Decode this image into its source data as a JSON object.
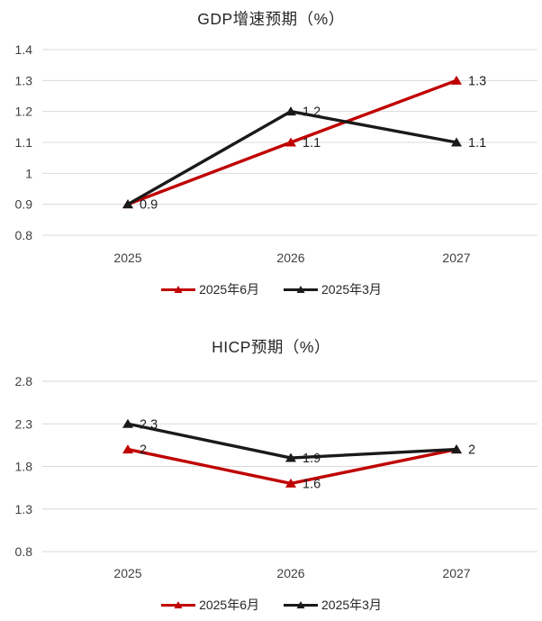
{
  "page": {
    "background": "#FFFFFF"
  },
  "colors": {
    "red_series": "#C00000",
    "black_series": "#1A1A1A",
    "gridline": "#D9D9D9",
    "axis_label": "#404040",
    "data_label": "#1F1F1F",
    "title": "#262626"
  },
  "chart_data": [
    {
      "type": "line",
      "title": "GDP增速预期（%）",
      "categories": [
        "2025",
        "2026",
        "2027"
      ],
      "series": [
        {
          "name": "2025年6月",
          "color": "#C00000",
          "values": [
            0.9,
            1.1,
            1.3
          ],
          "point_labels": [
            "",
            "1.1",
            "1.3"
          ]
        },
        {
          "name": "2025年3月",
          "color": "#1A1A1A",
          "values": [
            0.9,
            1.2,
            1.1
          ],
          "point_labels": [
            "0.9",
            "1.2",
            "1.1"
          ]
        }
      ],
      "ylim": [
        0.8,
        1.4
      ],
      "yticks": [
        "1.4",
        "1.3",
        "1.2",
        "1.1",
        "1",
        "0.9",
        "0.8"
      ],
      "grid": true,
      "legend_position": "bottom",
      "xlabel": "",
      "ylabel": ""
    },
    {
      "type": "line",
      "title": "HICP预期（%）",
      "categories": [
        "2025",
        "2026",
        "2027"
      ],
      "series": [
        {
          "name": "2025年6月",
          "color": "#C00000",
          "values": [
            2,
            1.6,
            2
          ],
          "point_labels": [
            "2",
            "1.6",
            ""
          ]
        },
        {
          "name": "2025年3月",
          "color": "#1A1A1A",
          "values": [
            2.3,
            1.9,
            2
          ],
          "point_labels": [
            "2.3",
            "1.9",
            "2"
          ]
        }
      ],
      "ylim": [
        0.8,
        2.8
      ],
      "yticks": [
        "2.8",
        "2.3",
        "1.8",
        "1.3",
        "0.8"
      ],
      "grid": true,
      "legend_position": "bottom",
      "xlabel": "",
      "ylabel": ""
    }
  ]
}
